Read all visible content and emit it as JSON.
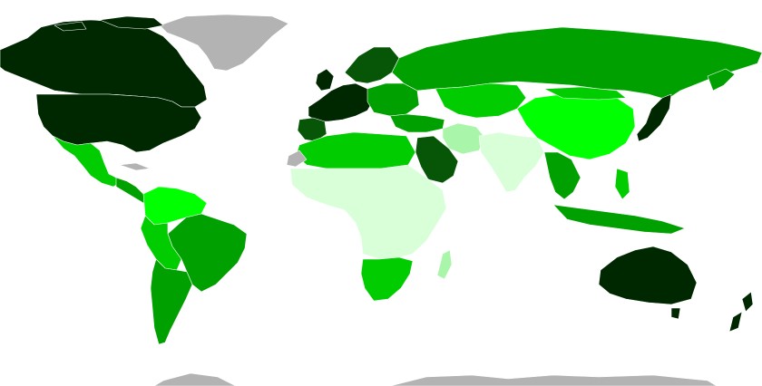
{
  "palette": {
    "ocean": "#ffffff",
    "no_data": "#b3b3b3",
    "tier1": "#002800",
    "tier2": "#075607",
    "tier3": "#00a000",
    "tier4": "#00cc00",
    "tier5": "#00ff00",
    "tier6": "#a9f5a9",
    "tier7": "#d9ffd9"
  }
}
